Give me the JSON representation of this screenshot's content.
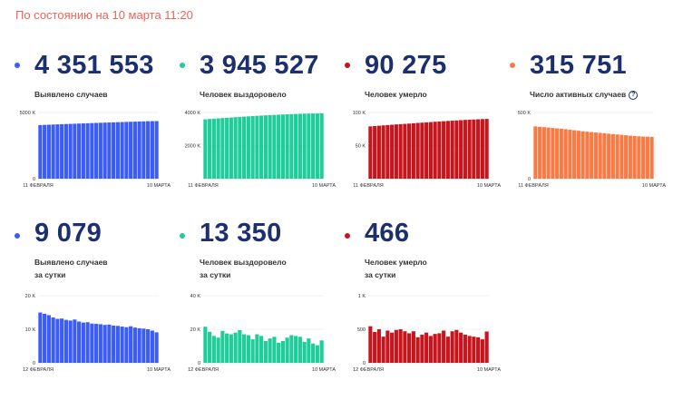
{
  "header": {
    "status": "По состоянию на 10 марта 11:20"
  },
  "cards": [
    {
      "id": "cases",
      "value": "4 351 553",
      "label_lines": [
        "Выявлено случаев"
      ],
      "color": "#3b5cf6",
      "help": false
    },
    {
      "id": "recovered",
      "value": "3 945 527",
      "label_lines": [
        "Человек выздоровело"
      ],
      "color": "#1fcc9a",
      "help": false
    },
    {
      "id": "deaths",
      "value": "90 275",
      "label_lines": [
        "Человек умерло"
      ],
      "color": "#c7141d",
      "help": false
    },
    {
      "id": "active",
      "value": "315 751",
      "label_lines": [
        "Число активных случаев"
      ],
      "color": "#fa7a45",
      "help": true,
      "help_glyph": "?"
    },
    {
      "id": "daily_cases",
      "value": "9 079",
      "label_lines": [
        "Выявлено случаев",
        "за сутки"
      ],
      "color": "#3b5cf6",
      "help": false
    },
    {
      "id": "daily_recovered",
      "value": "13 350",
      "label_lines": [
        "Человек выздоровело",
        "за сутки"
      ],
      "color": "#1fcc9a",
      "help": false
    },
    {
      "id": "daily_deaths",
      "value": "466",
      "label_lines": [
        "Человек умерло",
        "за сутки"
      ],
      "color": "#c7141d",
      "help": false
    }
  ],
  "chart_data": [
    {
      "type": "bar",
      "card": "cases",
      "color": "#3b5cf6",
      "xlabel": "",
      "ylabel": "",
      "ylim": [
        0,
        5000000
      ],
      "y_ticks": [
        {
          "value": 5000000,
          "label": "5000 K"
        },
        {
          "value": 0,
          "label": "0"
        }
      ],
      "x_tick_labels": [
        "11 ФЕВРАЛЯ",
        "10 МАРТА"
      ],
      "values": [
        4050000,
        4063000,
        4076000,
        4089000,
        4102000,
        4115000,
        4127000,
        4139000,
        4151000,
        4163000,
        4175000,
        4187000,
        4199000,
        4211000,
        4222000,
        4233000,
        4244000,
        4255000,
        4266000,
        4277000,
        4288000,
        4299000,
        4309000,
        4319000,
        4329000,
        4339000,
        4345000,
        4351553
      ]
    },
    {
      "type": "bar",
      "card": "recovered",
      "color": "#1fcc9a",
      "xlabel": "",
      "ylabel": "",
      "ylim": [
        0,
        4000000
      ],
      "y_ticks": [
        {
          "value": 4000000,
          "label": "4000 K"
        },
        {
          "value": 2000000,
          "label": "2000 K"
        }
      ],
      "x_tick_labels": [
        "11 ФЕВРАЛЯ",
        "10 МАРТА"
      ],
      "values": [
        3585000,
        3605000,
        3624000,
        3643000,
        3662000,
        3680000,
        3698000,
        3716000,
        3733000,
        3750000,
        3766000,
        3782000,
        3797000,
        3812000,
        3826000,
        3840000,
        3853000,
        3866000,
        3878000,
        3890000,
        3901000,
        3911000,
        3920000,
        3928000,
        3935000,
        3940000,
        3943000,
        3945527
      ]
    },
    {
      "type": "bar",
      "card": "deaths",
      "color": "#c7141d",
      "xlabel": "",
      "ylabel": "",
      "ylim": [
        0,
        100000
      ],
      "y_ticks": [
        {
          "value": 100000,
          "label": "100 K"
        },
        {
          "value": 50000,
          "label": "50 K"
        }
      ],
      "x_tick_labels": [
        "11 ФЕВРАЛЯ",
        "10 МАРТА"
      ],
      "values": [
        79000,
        79500,
        80000,
        80500,
        81000,
        81500,
        82000,
        82400,
        82800,
        83200,
        83700,
        84200,
        84600,
        85000,
        85500,
        86000,
        86400,
        86800,
        87200,
        87600,
        88000,
        88400,
        88800,
        89100,
        89400,
        89700,
        90000,
        90275
      ]
    },
    {
      "type": "bar",
      "card": "active",
      "color": "#fa7a45",
      "xlabel": "",
      "ylabel": "",
      "ylim": [
        0,
        500000
      ],
      "y_ticks": [
        {
          "value": 500000,
          "label": "500 K"
        },
        {
          "value": 0,
          "label": "0"
        }
      ],
      "x_tick_labels": [
        "11 ФЕВРАЛЯ",
        "10 МАРТА"
      ],
      "values": [
        395000,
        392000,
        389000,
        386000,
        383000,
        380000,
        377000,
        374000,
        370000,
        366000,
        362000,
        358000,
        355000,
        352000,
        349000,
        346000,
        343000,
        340000,
        337000,
        334000,
        331000,
        328000,
        325000,
        322000,
        320000,
        318000,
        317000,
        315751
      ]
    },
    {
      "type": "bar",
      "card": "daily_cases",
      "color": "#3b5cf6",
      "xlabel": "",
      "ylabel": "",
      "ylim": [
        0,
        20000
      ],
      "y_ticks": [
        {
          "value": 20000,
          "label": "20 K"
        },
        {
          "value": 10000,
          "label": "10 K"
        },
        {
          "value": 0,
          "label": "0"
        }
      ],
      "x_tick_labels": [
        "12 ФЕВРАЛЯ",
        "10 МАРТА"
      ],
      "values": [
        15000,
        14600,
        14200,
        13500,
        13100,
        13200,
        12800,
        12600,
        12900,
        12300,
        12000,
        12100,
        11700,
        11600,
        11500,
        11300,
        11400,
        11100,
        11000,
        10800,
        10600,
        10900,
        10500,
        10300,
        10200,
        10000,
        9600,
        9079
      ]
    },
    {
      "type": "bar",
      "card": "daily_recovered",
      "color": "#1fcc9a",
      "xlabel": "",
      "ylabel": "",
      "ylim": [
        0,
        40000
      ],
      "y_ticks": [
        {
          "value": 40000,
          "label": "40 K"
        },
        {
          "value": 20000,
          "label": "20 K"
        },
        {
          "value": 0,
          "label": "0"
        }
      ],
      "x_tick_labels": [
        "12 ФЕВРАЛЯ",
        "10 МАРТА"
      ],
      "values": [
        21500,
        18500,
        16000,
        15000,
        19000,
        17500,
        17000,
        18000,
        19500,
        17000,
        16500,
        14000,
        17000,
        16000,
        13000,
        14500,
        15500,
        12000,
        13000,
        15000,
        16500,
        16000,
        15500,
        12500,
        14500,
        11500,
        10500,
        13350
      ]
    },
    {
      "type": "bar",
      "card": "daily_deaths",
      "color": "#c7141d",
      "xlabel": "",
      "ylabel": "",
      "ylim": [
        0,
        1000
      ],
      "y_ticks": [
        {
          "value": 1000,
          "label": "1 K"
        },
        {
          "value": 500,
          "label": "500"
        },
        {
          "value": 0,
          "label": "0"
        }
      ],
      "x_tick_labels": [
        "12 ФЕВРАЛЯ",
        "10 МАРТА"
      ],
      "values": [
        545,
        460,
        500,
        390,
        480,
        450,
        490,
        500,
        470,
        440,
        470,
        380,
        420,
        450,
        400,
        430,
        440,
        480,
        390,
        470,
        490,
        450,
        420,
        400,
        390,
        380,
        350,
        466
      ]
    }
  ]
}
